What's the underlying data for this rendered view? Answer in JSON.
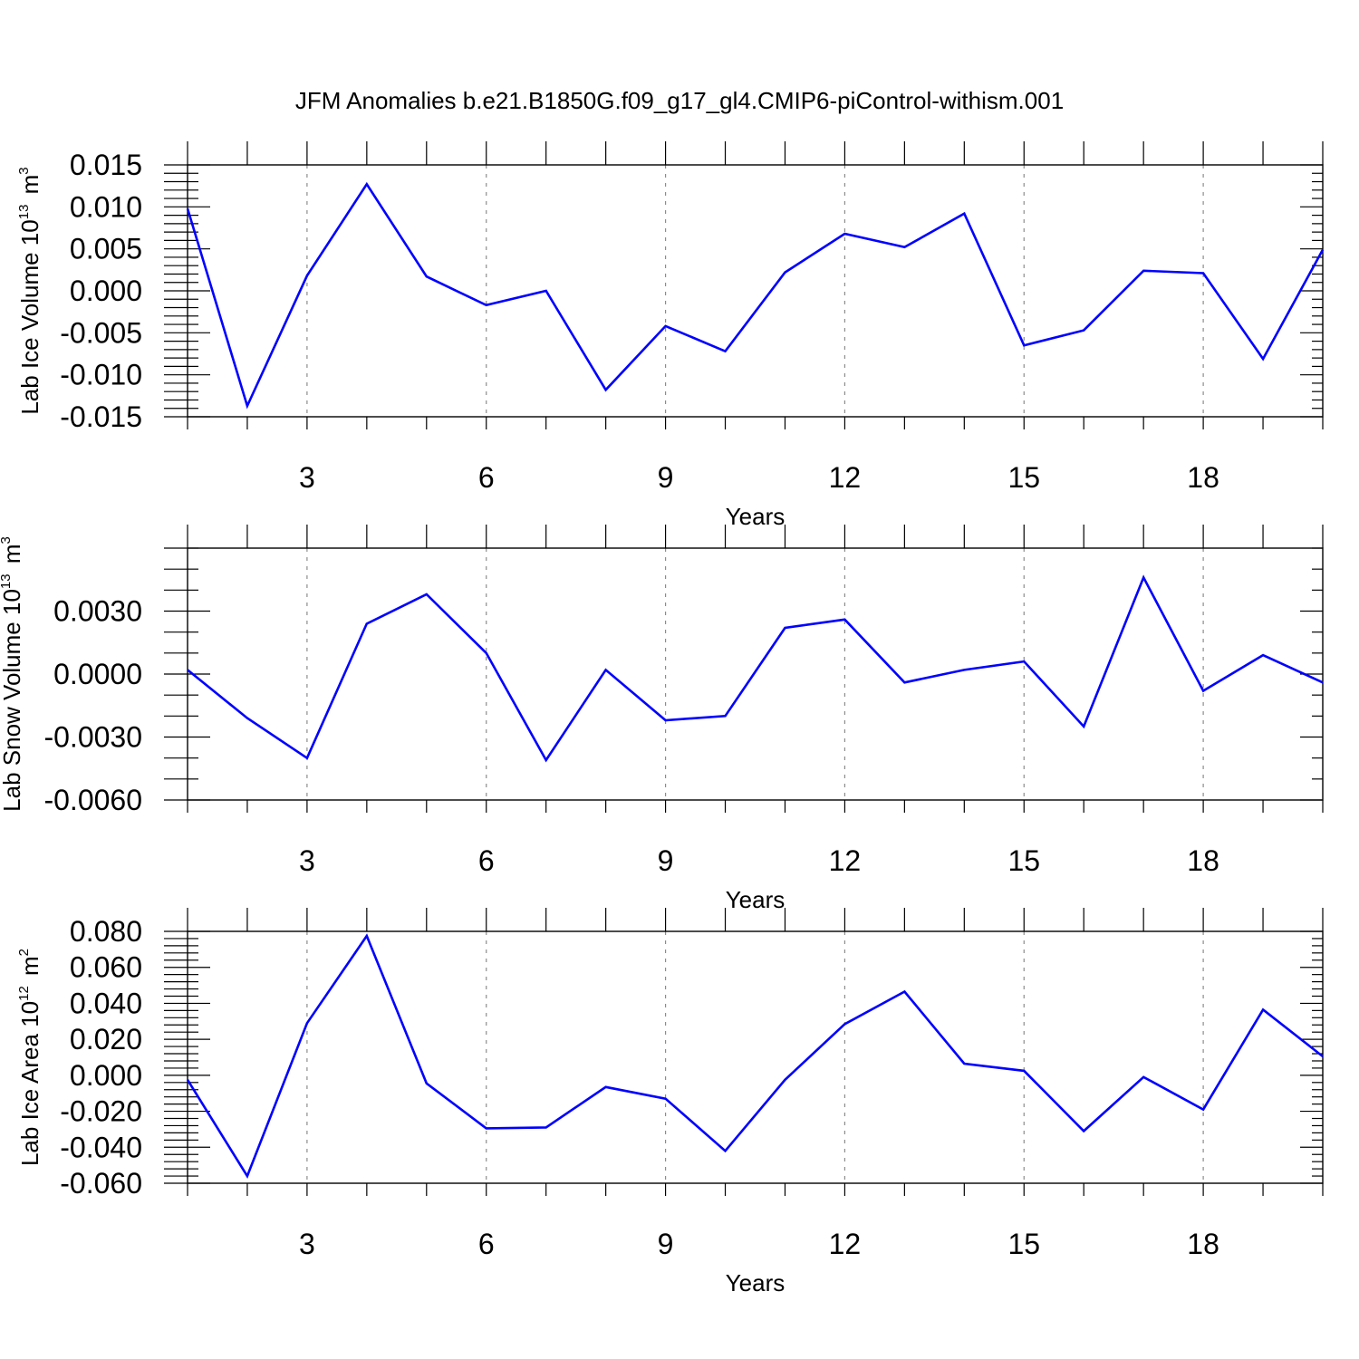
{
  "title": "JFM Anomalies b.e21.B1850G.f09_g17_gl4.CMIP6-piControl-withism.001",
  "colors": {
    "line": "#0000ff",
    "grid": "#8c8c8c"
  },
  "chart_data": [
    {
      "type": "line",
      "ylabel": {
        "text": "Lab Ice Volume 10",
        "exponent": "13",
        "unit": "m",
        "unit_exponent": "3"
      },
      "xlabel": "Years",
      "xlim": [
        1,
        20
      ],
      "ylim": [
        -0.015,
        0.015
      ],
      "x_ticks": [
        3,
        6,
        9,
        12,
        15,
        18
      ],
      "x_tick_labels": [
        "3",
        "6",
        "9",
        "12",
        "15",
        "18"
      ],
      "y_ticks": [
        -0.015,
        -0.01,
        -0.005,
        0.0,
        0.005,
        0.01,
        0.015
      ],
      "y_tick_labels": [
        "-0.015",
        "-0.010",
        "-0.005",
        "0.000",
        "0.005",
        "0.010",
        "0.015"
      ],
      "y_minor_step": 0.001,
      "grid": "vertical dashed at major x ticks",
      "x": [
        1,
        2,
        3,
        4,
        5,
        6,
        7,
        8,
        9,
        10,
        11,
        12,
        13,
        14,
        15,
        16,
        17,
        18,
        19,
        20
      ],
      "series": [
        {
          "values": [
            0.0098,
            -0.0137,
            0.0018,
            0.0127,
            0.0017,
            -0.0017,
            0.0,
            -0.0118,
            -0.0042,
            -0.0072,
            0.0022,
            0.0068,
            0.0052,
            0.0092,
            -0.0065,
            -0.0047,
            0.0024,
            0.0021,
            -0.0081,
            0.0049
          ]
        }
      ]
    },
    {
      "type": "line",
      "ylabel": {
        "text": "Lab Snow Volume 10",
        "exponent": "13",
        "unit": "m",
        "unit_exponent": "3"
      },
      "xlabel": "Years",
      "xlim": [
        1,
        20
      ],
      "ylim": [
        -0.006,
        0.006
      ],
      "x_ticks": [
        3,
        6,
        9,
        12,
        15,
        18
      ],
      "x_tick_labels": [
        "3",
        "6",
        "9",
        "12",
        "15",
        "18"
      ],
      "y_ticks": [
        -0.006,
        -0.003,
        0.0,
        0.003
      ],
      "y_tick_labels": [
        "-0.0060",
        "-0.0030",
        "0.0000",
        "0.0030"
      ],
      "y_minor_step": 0.001,
      "grid": "vertical dashed at major x ticks",
      "x": [
        1,
        2,
        3,
        4,
        5,
        6,
        7,
        8,
        9,
        10,
        11,
        12,
        13,
        14,
        15,
        16,
        17,
        18,
        19,
        20
      ],
      "series": [
        {
          "values": [
            0.0002,
            -0.0021,
            -0.004,
            0.0024,
            0.0038,
            0.001,
            -0.0041,
            0.0002,
            -0.0022,
            -0.002,
            0.0022,
            0.0026,
            -0.0004,
            0.0002,
            0.0006,
            -0.0025,
            0.0046,
            -0.0008,
            0.0009,
            -0.0004
          ]
        }
      ]
    },
    {
      "type": "line",
      "ylabel": {
        "text": "Lab Ice Area 10",
        "exponent": "12",
        "unit": "m",
        "unit_exponent": "2"
      },
      "xlabel": "Years",
      "xlim": [
        1,
        20
      ],
      "ylim": [
        -0.06,
        0.08
      ],
      "x_ticks": [
        3,
        6,
        9,
        12,
        15,
        18
      ],
      "x_tick_labels": [
        "3",
        "6",
        "9",
        "12",
        "15",
        "18"
      ],
      "y_ticks": [
        -0.06,
        -0.04,
        -0.02,
        0.0,
        0.02,
        0.04,
        0.06,
        0.08
      ],
      "y_tick_labels": [
        "-0.060",
        "-0.040",
        "-0.020",
        "0.000",
        "0.020",
        "0.040",
        "0.060",
        "0.080"
      ],
      "y_minor_step": 0.004,
      "grid": "vertical dashed at major x ticks",
      "x": [
        1,
        2,
        3,
        4,
        5,
        6,
        7,
        8,
        9,
        10,
        11,
        12,
        13,
        14,
        15,
        16,
        17,
        18,
        19,
        20
      ],
      "series": [
        {
          "values": [
            -0.0025,
            -0.056,
            0.029,
            0.0775,
            -0.0045,
            -0.0295,
            -0.029,
            -0.0065,
            -0.013,
            -0.042,
            -0.0025,
            0.0285,
            0.0465,
            0.0065,
            0.0025,
            -0.031,
            -0.001,
            -0.019,
            0.0365,
            0.0105
          ]
        }
      ]
    }
  ]
}
